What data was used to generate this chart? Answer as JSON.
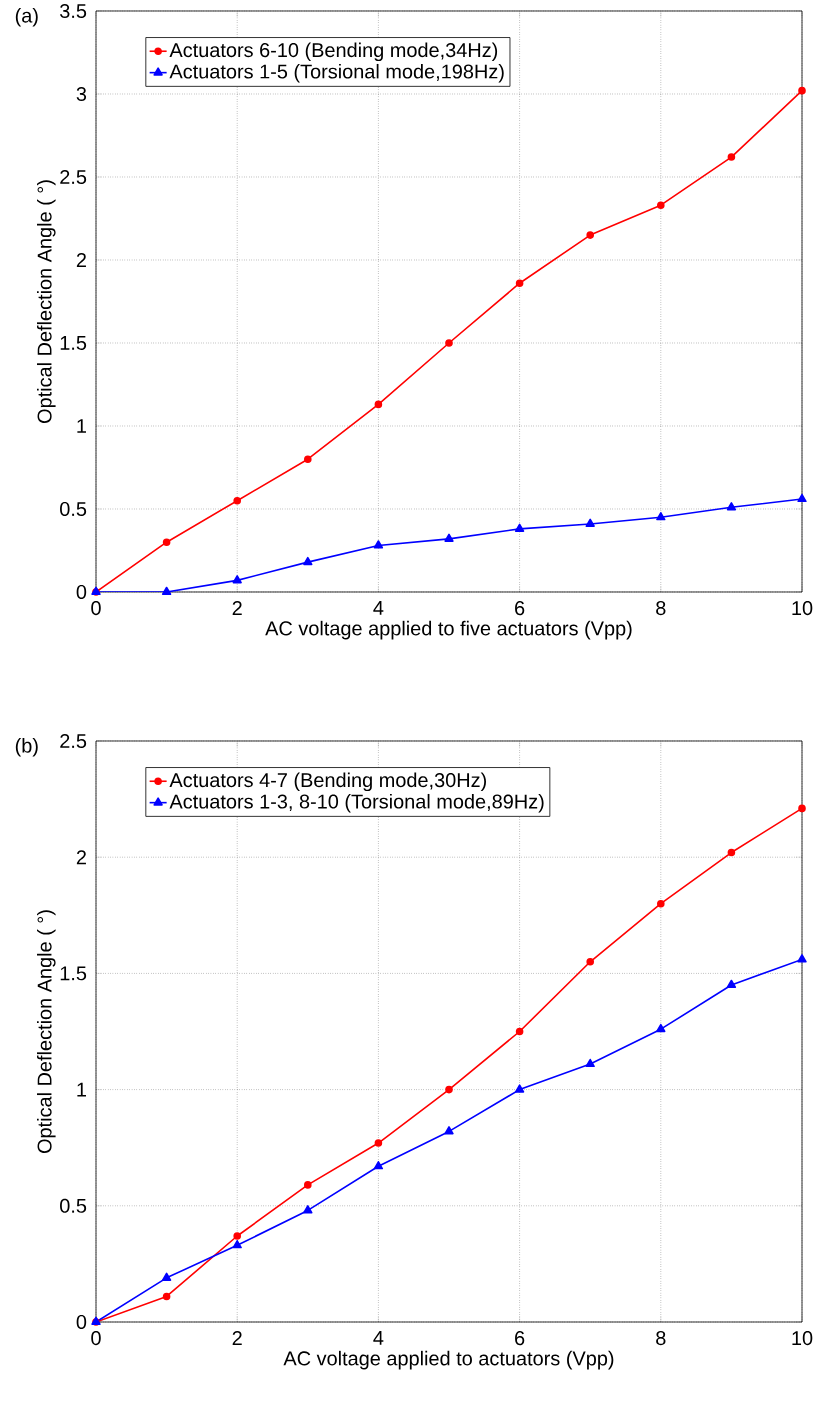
{
  "chart_data": [
    {
      "type": "line",
      "title": "(a)",
      "xlabel": "AC voltage applied to five actuators (Vpp)",
      "ylabel": "Optical Deflection Angle ( °)",
      "x": [
        0,
        1,
        2,
        3,
        4,
        5,
        6,
        7,
        8,
        9,
        10
      ],
      "series": [
        {
          "name": "Actuators 6-10 (Bending mode,34Hz)",
          "color": "#ff0000",
          "marker": "circle",
          "values": [
            0,
            0.3,
            0.55,
            0.8,
            1.13,
            1.5,
            1.86,
            2.15,
            2.33,
            2.62,
            3.02
          ]
        },
        {
          "name": "Actuators 1-5 (Torsional mode,198Hz)",
          "color": "#0000ff",
          "marker": "triangle",
          "values": [
            0,
            0,
            0.07,
            0.18,
            0.28,
            0.32,
            0.38,
            0.41,
            0.45,
            0.51,
            0.56
          ]
        }
      ],
      "xlim": [
        0,
        10
      ],
      "ylim": [
        0,
        3.5
      ],
      "xticks": [
        0,
        2,
        4,
        6,
        8,
        10
      ],
      "yticks": [
        0,
        0.5,
        1,
        1.5,
        2,
        2.5,
        3,
        3.5
      ],
      "grid": true,
      "legend": "top left",
      "line_style": "solid"
    },
    {
      "type": "line",
      "title": "(b)",
      "xlabel": "AC voltage applied to actuators (Vpp)",
      "ylabel": "Optical Deflection Angle ( °)",
      "x": [
        0,
        1,
        2,
        3,
        4,
        5,
        6,
        7,
        8,
        9,
        10
      ],
      "series": [
        {
          "name": "Actuators 4-7 (Bending mode,30Hz)",
          "color": "#ff0000",
          "marker": "circle",
          "values": [
            0,
            0.11,
            0.37,
            0.59,
            0.77,
            1.0,
            1.25,
            1.55,
            1.8,
            2.02,
            2.21
          ]
        },
        {
          "name": "Actuators 1-3, 8-10 (Torsional mode,89Hz)",
          "color": "#0000ff",
          "marker": "triangle",
          "values": [
            0,
            0.19,
            0.33,
            0.48,
            0.67,
            0.82,
            1.0,
            1.11,
            1.26,
            1.45,
            1.56
          ]
        }
      ],
      "xlim": [
        0,
        10
      ],
      "ylim": [
        0,
        2.5
      ],
      "xticks": [
        0,
        2,
        4,
        6,
        8,
        10
      ],
      "yticks": [
        0,
        0.5,
        1,
        1.5,
        2,
        2.5
      ],
      "grid": true,
      "legend": "top left",
      "line_style": "solid"
    }
  ]
}
